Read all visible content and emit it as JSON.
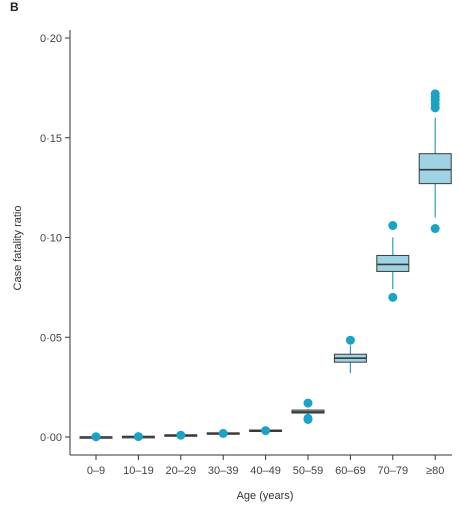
{
  "panel_label": "B",
  "chart_data": {
    "type": "box",
    "title": "",
    "xlabel": "Age (years)",
    "ylabel": "Case fatality ratio",
    "ylim": [
      0,
      0.2
    ],
    "yticks": [
      0,
      0.05,
      0.1,
      0.15,
      0.2
    ],
    "ytick_labels": [
      "0·00",
      "0·05",
      "0·10",
      "0·15",
      "0·20"
    ],
    "categories": [
      "0–9",
      "10–19",
      "20–29",
      "30–39",
      "40–49",
      "50–59",
      "60–69",
      "70–79",
      "≥80"
    ],
    "boxes": [
      {
        "category": "0–9",
        "whisker_low": 0.0,
        "q1": 0.0,
        "median": 0.0,
        "q3": 0.0001,
        "whisker_high": 0.0001,
        "outliers": [
          0.0001
        ]
      },
      {
        "category": "10–19",
        "whisker_low": 0.0001,
        "q1": 0.0001,
        "median": 0.0002,
        "q3": 0.0003,
        "whisker_high": 0.0003,
        "outliers": [
          0.0002
        ]
      },
      {
        "category": "20–29",
        "whisker_low": 0.0006,
        "q1": 0.0007,
        "median": 0.0009,
        "q3": 0.0011,
        "whisker_high": 0.0012,
        "outliers": [
          0.0009
        ]
      },
      {
        "category": "30–39",
        "whisker_low": 0.0014,
        "q1": 0.0016,
        "median": 0.0018,
        "q3": 0.0021,
        "whisker_high": 0.0023,
        "outliers": [
          0.0018
        ]
      },
      {
        "category": "40–49",
        "whisker_low": 0.0028,
        "q1": 0.003,
        "median": 0.0032,
        "q3": 0.0035,
        "whisker_high": 0.0037,
        "outliers": [
          0.0032
        ]
      },
      {
        "category": "50–59",
        "whisker_low": 0.0115,
        "q1": 0.012,
        "median": 0.0126,
        "q3": 0.0135,
        "whisker_high": 0.014,
        "outliers": [
          0.0088,
          0.0094,
          0.017
        ]
      },
      {
        "category": "60–69",
        "whisker_low": 0.032,
        "q1": 0.0375,
        "median": 0.0395,
        "q3": 0.0415,
        "whisker_high": 0.046,
        "outliers": [
          0.0485
        ]
      },
      {
        "category": "70–79",
        "whisker_low": 0.074,
        "q1": 0.083,
        "median": 0.0865,
        "q3": 0.091,
        "whisker_high": 0.1,
        "outliers": [
          0.07,
          0.106
        ]
      },
      {
        "category": "≥80",
        "whisker_low": 0.11,
        "q1": 0.127,
        "median": 0.134,
        "q3": 0.142,
        "whisker_high": 0.16,
        "outliers": [
          0.1045,
          0.165,
          0.167,
          0.169,
          0.1705,
          0.172
        ]
      }
    ],
    "grid": false,
    "legend": "none"
  },
  "colors": {
    "box_fill": "#9ed3e4",
    "box_stroke": "#3a3a3a",
    "whisker": "#2a9fbf",
    "outlier": "#1aa3c4",
    "axis": "#333333"
  }
}
